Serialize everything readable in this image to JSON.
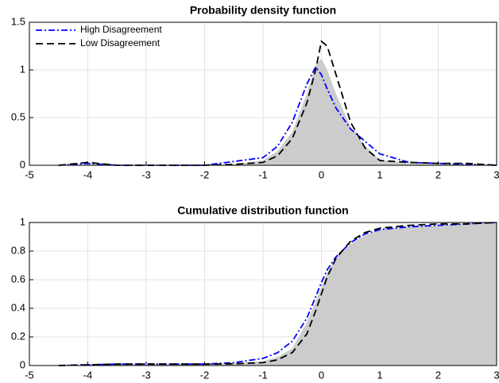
{
  "chart_data": [
    {
      "type": "area-line",
      "title": "Probability density function",
      "x": [
        -4.5,
        -4,
        -3.5,
        -3,
        -2.5,
        -2,
        -1.5,
        -1,
        -0.75,
        -0.5,
        -0.25,
        -0.1,
        0,
        0.1,
        0.25,
        0.5,
        0.75,
        1,
        1.5,
        2,
        2.5,
        3
      ],
      "series": [
        {
          "color": "#cccccc",
          "fill": true,
          "values": [
            0,
            0.01,
            0,
            0,
            0,
            0,
            0.01,
            0.05,
            0.15,
            0.35,
            0.75,
            1.05,
            1.12,
            1.0,
            0.75,
            0.4,
            0.2,
            0.06,
            0.02,
            0.01,
            0.01,
            0
          ]
        },
        {
          "name": "High Disagreement",
          "color": "#0000ff",
          "dash": "dashdot",
          "values": [
            0,
            0.02,
            0,
            0,
            0,
            0,
            0.04,
            0.08,
            0.2,
            0.45,
            0.85,
            1.03,
            0.95,
            0.8,
            0.6,
            0.38,
            0.25,
            0.12,
            0.03,
            0.02,
            0.01,
            0
          ]
        },
        {
          "name": "Low Disagreement",
          "color": "#000000",
          "dash": "dashed",
          "values": [
            0,
            0.03,
            0,
            0,
            0,
            0,
            0.01,
            0.03,
            0.1,
            0.28,
            0.65,
            1.0,
            1.3,
            1.25,
            0.95,
            0.45,
            0.18,
            0.05,
            0.03,
            0.02,
            0.02,
            0
          ]
        }
      ],
      "xlim": [
        -5,
        3
      ],
      "xticks": [
        -5,
        -4,
        -3,
        -2,
        -1,
        0,
        1,
        2,
        3
      ],
      "ylim": [
        0,
        1.5
      ],
      "yticks": [
        0,
        0.5,
        1,
        1.5
      ],
      "grid": true,
      "legend": "upper left"
    },
    {
      "type": "area-line",
      "title": "Cumulative distribution function",
      "x": [
        -4.5,
        -4,
        -3.5,
        -3,
        -2.5,
        -2,
        -1.5,
        -1,
        -0.75,
        -0.5,
        -0.25,
        -0.1,
        0,
        0.1,
        0.25,
        0.5,
        0.75,
        1,
        1.5,
        2,
        2.5,
        3
      ],
      "series": [
        {
          "color": "#cccccc",
          "fill": true,
          "values": [
            0,
            0.005,
            0.01,
            0.01,
            0.01,
            0.01,
            0.015,
            0.03,
            0.06,
            0.12,
            0.3,
            0.45,
            0.55,
            0.65,
            0.75,
            0.85,
            0.91,
            0.95,
            0.97,
            0.98,
            0.99,
            1
          ]
        },
        {
          "color": "#0000ff",
          "dash": "dashdot",
          "values": [
            0,
            0.005,
            0.01,
            0.01,
            0.01,
            0.01,
            0.02,
            0.05,
            0.09,
            0.17,
            0.33,
            0.48,
            0.58,
            0.67,
            0.76,
            0.86,
            0.92,
            0.95,
            0.97,
            0.98,
            0.99,
            1
          ]
        },
        {
          "color": "#000000",
          "dash": "dashed",
          "values": [
            0,
            0.005,
            0.01,
            0.01,
            0.01,
            0.01,
            0.012,
            0.02,
            0.04,
            0.09,
            0.22,
            0.38,
            0.5,
            0.62,
            0.75,
            0.87,
            0.93,
            0.96,
            0.98,
            0.99,
            0.99,
            1
          ]
        }
      ],
      "xlim": [
        -5,
        3
      ],
      "xticks": [
        -5,
        -4,
        -3,
        -2,
        -1,
        0,
        1,
        2,
        3
      ],
      "ylim": [
        0,
        1
      ],
      "yticks": [
        0,
        0.2,
        0.4,
        0.6,
        0.8,
        1
      ],
      "grid": true
    }
  ]
}
